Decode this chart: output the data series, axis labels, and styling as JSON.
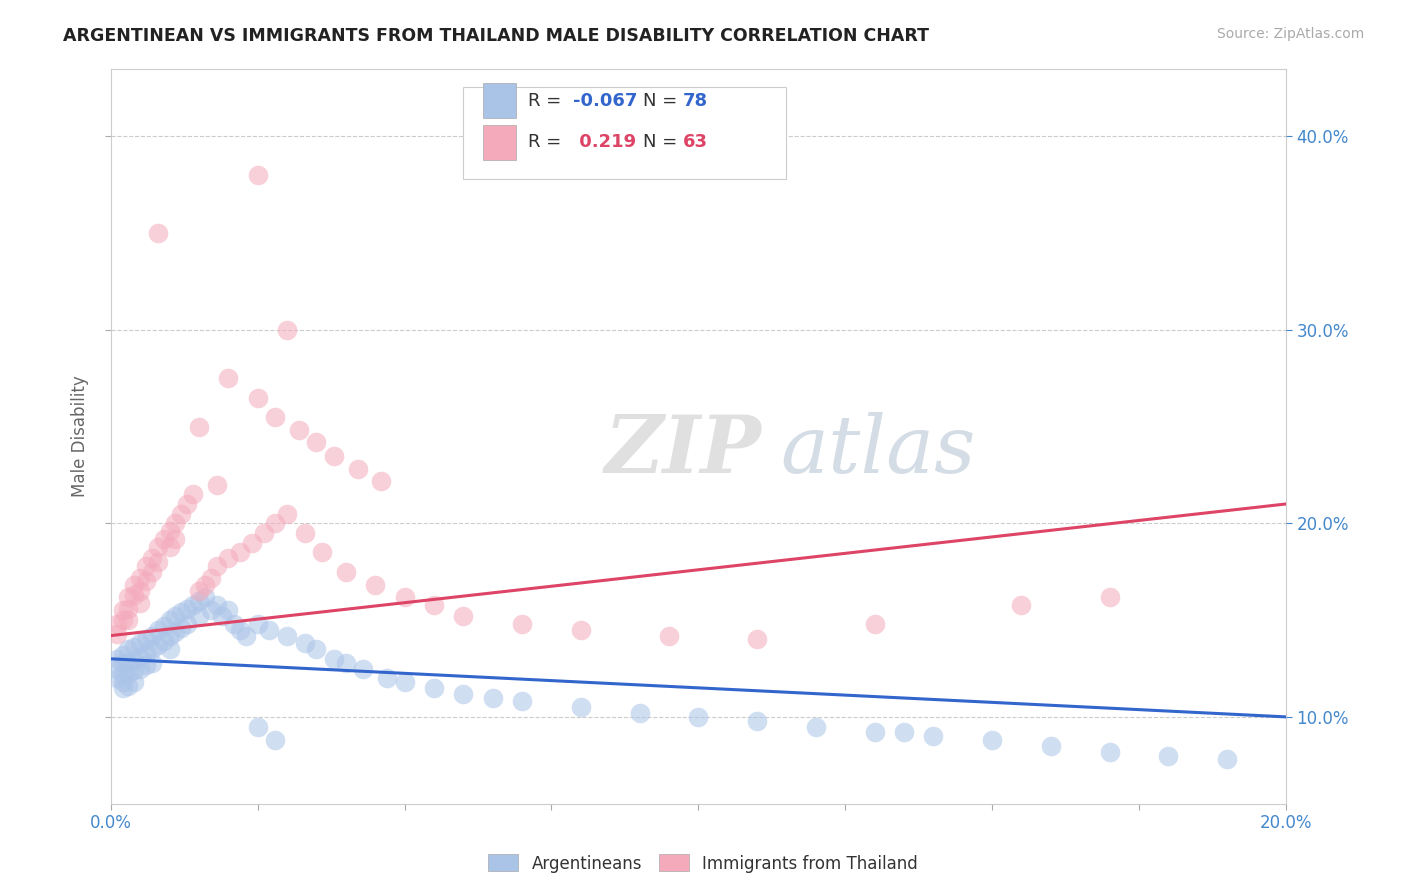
{
  "title": "ARGENTINEAN VS IMMIGRANTS FROM THAILAND MALE DISABILITY CORRELATION CHART",
  "source_text": "Source: ZipAtlas.com",
  "ylabel": "Male Disability",
  "xmin": 0.0,
  "xmax": 0.2,
  "ymin": 0.055,
  "ymax": 0.435,
  "yticks": [
    0.1,
    0.2,
    0.3,
    0.4
  ],
  "ytick_labels": [
    "10.0%",
    "20.0%",
    "30.0%",
    "40.0%"
  ],
  "xticks": [
    0.0,
    0.025,
    0.05,
    0.075,
    0.1,
    0.125,
    0.15,
    0.175,
    0.2
  ],
  "legend_blue_r": "-0.067",
  "legend_blue_n": "78",
  "legend_pink_r": "0.219",
  "legend_pink_n": "63",
  "blue_color": "#aac4e8",
  "pink_color": "#f4aabb",
  "blue_line_color": "#3366cc",
  "pink_line_color": "#dd4466",
  "watermark_zip": "ZIP",
  "watermark_atlas": "atlas",
  "blue_scatter_x": [
    0.001,
    0.001,
    0.001,
    0.002,
    0.002,
    0.002,
    0.002,
    0.002,
    0.003,
    0.003,
    0.003,
    0.003,
    0.004,
    0.004,
    0.004,
    0.004,
    0.005,
    0.005,
    0.005,
    0.006,
    0.006,
    0.006,
    0.007,
    0.007,
    0.007,
    0.008,
    0.008,
    0.009,
    0.009,
    0.01,
    0.01,
    0.01,
    0.011,
    0.011,
    0.012,
    0.012,
    0.013,
    0.013,
    0.014,
    0.015,
    0.015,
    0.016,
    0.017,
    0.018,
    0.019,
    0.02,
    0.021,
    0.022,
    0.023,
    0.025,
    0.027,
    0.03,
    0.033,
    0.035,
    0.038,
    0.04,
    0.043,
    0.047,
    0.05,
    0.055,
    0.06,
    0.065,
    0.07,
    0.08,
    0.09,
    0.1,
    0.11,
    0.12,
    0.13,
    0.14,
    0.15,
    0.16,
    0.17,
    0.18,
    0.135,
    0.19,
    0.025,
    0.028
  ],
  "blue_scatter_y": [
    0.13,
    0.125,
    0.12,
    0.132,
    0.128,
    0.122,
    0.118,
    0.115,
    0.135,
    0.128,
    0.122,
    0.116,
    0.136,
    0.129,
    0.124,
    0.118,
    0.138,
    0.131,
    0.125,
    0.14,
    0.133,
    0.127,
    0.142,
    0.135,
    0.128,
    0.145,
    0.137,
    0.147,
    0.139,
    0.15,
    0.142,
    0.135,
    0.152,
    0.144,
    0.154,
    0.146,
    0.156,
    0.148,
    0.158,
    0.16,
    0.152,
    0.162,
    0.155,
    0.158,
    0.152,
    0.155,
    0.148,
    0.145,
    0.142,
    0.148,
    0.145,
    0.142,
    0.138,
    0.135,
    0.13,
    0.128,
    0.125,
    0.12,
    0.118,
    0.115,
    0.112,
    0.11,
    0.108,
    0.105,
    0.102,
    0.1,
    0.098,
    0.095,
    0.092,
    0.09,
    0.088,
    0.085,
    0.082,
    0.08,
    0.092,
    0.078,
    0.095,
    0.088
  ],
  "pink_scatter_x": [
    0.001,
    0.001,
    0.002,
    0.002,
    0.003,
    0.003,
    0.003,
    0.004,
    0.004,
    0.005,
    0.005,
    0.005,
    0.006,
    0.006,
    0.007,
    0.007,
    0.008,
    0.008,
    0.009,
    0.01,
    0.01,
    0.011,
    0.011,
    0.012,
    0.013,
    0.014,
    0.015,
    0.016,
    0.017,
    0.018,
    0.02,
    0.022,
    0.024,
    0.026,
    0.028,
    0.03,
    0.033,
    0.036,
    0.04,
    0.045,
    0.05,
    0.055,
    0.06,
    0.07,
    0.08,
    0.095,
    0.11,
    0.13,
    0.155,
    0.17,
    0.018,
    0.025,
    0.028,
    0.032,
    0.035,
    0.038,
    0.042,
    0.046,
    0.02,
    0.015,
    0.008,
    0.025,
    0.03
  ],
  "pink_scatter_y": [
    0.148,
    0.143,
    0.155,
    0.15,
    0.162,
    0.156,
    0.15,
    0.168,
    0.163,
    0.172,
    0.165,
    0.159,
    0.178,
    0.17,
    0.182,
    0.175,
    0.188,
    0.18,
    0.192,
    0.196,
    0.188,
    0.2,
    0.192,
    0.205,
    0.21,
    0.215,
    0.165,
    0.168,
    0.172,
    0.178,
    0.182,
    0.185,
    0.19,
    0.195,
    0.2,
    0.205,
    0.195,
    0.185,
    0.175,
    0.168,
    0.162,
    0.158,
    0.152,
    0.148,
    0.145,
    0.142,
    0.14,
    0.148,
    0.158,
    0.162,
    0.22,
    0.265,
    0.255,
    0.248,
    0.242,
    0.235,
    0.228,
    0.222,
    0.275,
    0.25,
    0.35,
    0.38,
    0.3
  ]
}
